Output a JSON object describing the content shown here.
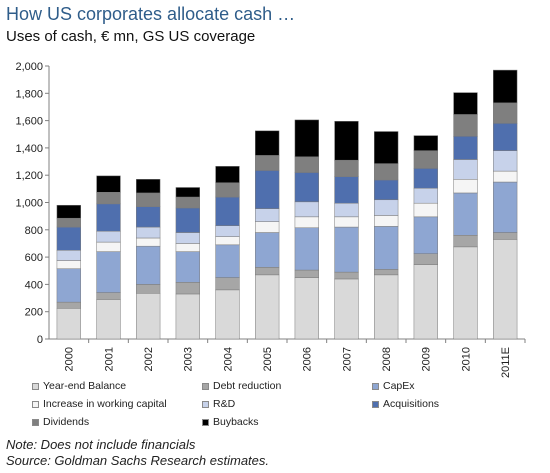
{
  "header": {
    "title": "How US corporates allocate cash …",
    "subtitle": "Uses of cash, € mn, GS US coverage"
  },
  "notes": {
    "note": "Note: Does not include financials",
    "source": "Source: Goldman Sachs Research estimates."
  },
  "chart_data": {
    "type": "bar",
    "stacked": true,
    "categories": [
      "2000",
      "2001",
      "2002",
      "2003",
      "2004",
      "2005",
      "2006",
      "2007",
      "2008",
      "2009",
      "2010",
      "2011E"
    ],
    "ylim": [
      0,
      2000
    ],
    "yticks": [
      "0",
      "200",
      "400",
      "600",
      "800",
      "1,000",
      "1,200",
      "1,400",
      "1,600",
      "1,800",
      "2,000"
    ],
    "grid": false,
    "legend_position": "bottom",
    "series": [
      {
        "name": "Year-end Balance",
        "color": "#d9d9d9",
        "values": [
          225,
          290,
          335,
          330,
          360,
          470,
          450,
          440,
          470,
          545,
          675,
          730
        ]
      },
      {
        "name": "Debt reduction",
        "color": "#a6a6a6",
        "values": [
          45,
          50,
          65,
          85,
          90,
          55,
          55,
          50,
          40,
          80,
          85,
          50
        ]
      },
      {
        "name": "CapEx",
        "color": "#8ea6d2",
        "values": [
          245,
          300,
          280,
          225,
          240,
          255,
          310,
          330,
          315,
          270,
          310,
          370
        ]
      },
      {
        "name": "Increase in working capital",
        "color": "#f5f5f5",
        "values": [
          60,
          70,
          60,
          60,
          60,
          80,
          80,
          75,
          80,
          100,
          100,
          80
        ]
      },
      {
        "name": "R&D",
        "color": "#c7d2ea",
        "values": [
          75,
          80,
          80,
          80,
          80,
          95,
          110,
          100,
          115,
          110,
          145,
          150
        ]
      },
      {
        "name": "Acquisitions",
        "color": "#4f6fae",
        "values": [
          170,
          200,
          150,
          180,
          210,
          280,
          215,
          195,
          145,
          145,
          170,
          200
        ]
      },
      {
        "name": "Dividends",
        "color": "#7f7f7f",
        "values": [
          65,
          85,
          100,
          80,
          105,
          110,
          115,
          120,
          120,
          130,
          160,
          150
        ]
      },
      {
        "name": "Buybacks",
        "color": "#000000",
        "values": [
          95,
          120,
          100,
          70,
          120,
          180,
          270,
          285,
          235,
          110,
          160,
          240
        ]
      }
    ]
  }
}
